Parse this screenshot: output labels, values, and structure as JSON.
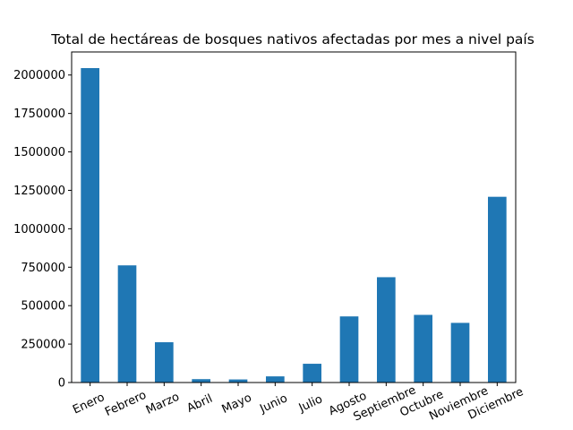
{
  "chart_data": {
    "type": "bar",
    "title": "Total de hectáreas de bosques nativos afectadas por mes a nivel país",
    "xlabel": "",
    "ylabel": "",
    "categories": [
      "Enero",
      "Febrero",
      "Marzo",
      "Abril",
      "Mayo",
      "Junio",
      "Julio",
      "Agosto",
      "Septiembre",
      "Octubre",
      "Noviembre",
      "Diciembre"
    ],
    "values": [
      2045000,
      762000,
      262000,
      22000,
      20000,
      40000,
      122000,
      430000,
      685000,
      440000,
      388000,
      1208000
    ],
    "ylim": [
      0,
      2150000
    ],
    "yticks": [
      0,
      250000,
      500000,
      750000,
      1000000,
      1250000,
      1500000,
      1750000,
      2000000
    ],
    "ytick_labels": [
      "0",
      "250000",
      "500000",
      "750000",
      "1000000",
      "1250000",
      "1500000",
      "1750000",
      "2000000"
    ],
    "bar_color": "#1f77b4",
    "grid": false,
    "xtick_rotation_deg": -25
  }
}
